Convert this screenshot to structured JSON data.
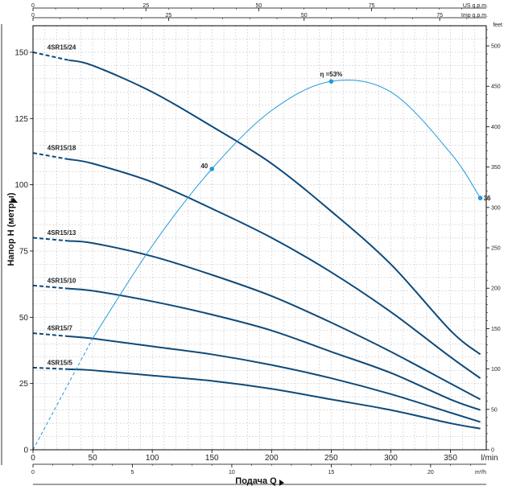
{
  "chart_data": {
    "type": "line",
    "xlabel": "Подача Q",
    "ylabel": "Напор H (метры)",
    "x_unit": "l/min",
    "x_unit_m3h": "m³/h",
    "x_unit_us": "US g.p.m.",
    "x_unit_imp": "Imp g.p.m.",
    "y_unit_right": "feet",
    "xlim": [
      0,
      380
    ],
    "ylim": [
      0,
      160
    ],
    "x_ticks": [
      "0",
      "50",
      "100",
      "150",
      "200",
      "250",
      "300",
      "350"
    ],
    "y_ticks": [
      "0",
      "25",
      "50",
      "75",
      "100",
      "125",
      "150"
    ],
    "m3h_ticks": [
      "0",
      "5",
      "10",
      "15",
      "20"
    ],
    "usgpm_ticks": [
      "0",
      "25",
      "50",
      "75"
    ],
    "impgpm_ticks": [
      "0",
      "25",
      "50",
      "75"
    ],
    "feet_ticks": [
      "0",
      "50",
      "100",
      "150",
      "200",
      "250",
      "300",
      "350",
      "400",
      "450",
      "500"
    ],
    "grid": true,
    "series": [
      {
        "name": "4SR15/24",
        "x": [
          0,
          50,
          100,
          150,
          200,
          250,
          300,
          350,
          375
        ],
        "y": [
          150,
          145,
          135,
          122,
          108,
          90,
          70,
          45,
          36
        ]
      },
      {
        "name": "4SR15/18",
        "x": [
          0,
          50,
          100,
          150,
          200,
          250,
          300,
          350,
          375
        ],
        "y": [
          112,
          108,
          101,
          91,
          80,
          67,
          52,
          35,
          27
        ]
      },
      {
        "name": "4SR15/13",
        "x": [
          0,
          50,
          100,
          150,
          200,
          250,
          300,
          350,
          375
        ],
        "y": [
          80,
          78,
          73,
          66,
          58,
          48,
          37,
          25,
          19
        ]
      },
      {
        "name": "4SR15/10",
        "x": [
          0,
          50,
          100,
          150,
          200,
          250,
          300,
          350,
          375
        ],
        "y": [
          62,
          60,
          56,
          51,
          45,
          37,
          29,
          19,
          15
        ]
      },
      {
        "name": "4SR15/7",
        "x": [
          0,
          50,
          100,
          150,
          200,
          250,
          300,
          350,
          375
        ],
        "y": [
          44,
          42,
          39,
          36,
          32,
          27,
          21,
          14,
          10.5
        ]
      },
      {
        "name": "4SR15/5",
        "x": [
          0,
          50,
          100,
          150,
          200,
          250,
          300,
          350,
          375
        ],
        "y": [
          31,
          30,
          28,
          26,
          23,
          19,
          15,
          10,
          8
        ]
      }
    ],
    "efficiency": {
      "x": [
        0,
        50,
        100,
        150,
        200,
        250,
        300,
        350,
        375
      ],
      "y": [
        0,
        42,
        77,
        106,
        128,
        139,
        135,
        112,
        95
      ],
      "labels": [
        {
          "text": "40",
          "x": 150,
          "y": 106
        },
        {
          "text": "η =53%",
          "x": 250,
          "y": 139
        },
        {
          "text": "36",
          "x": 375,
          "y": 95
        }
      ]
    }
  }
}
